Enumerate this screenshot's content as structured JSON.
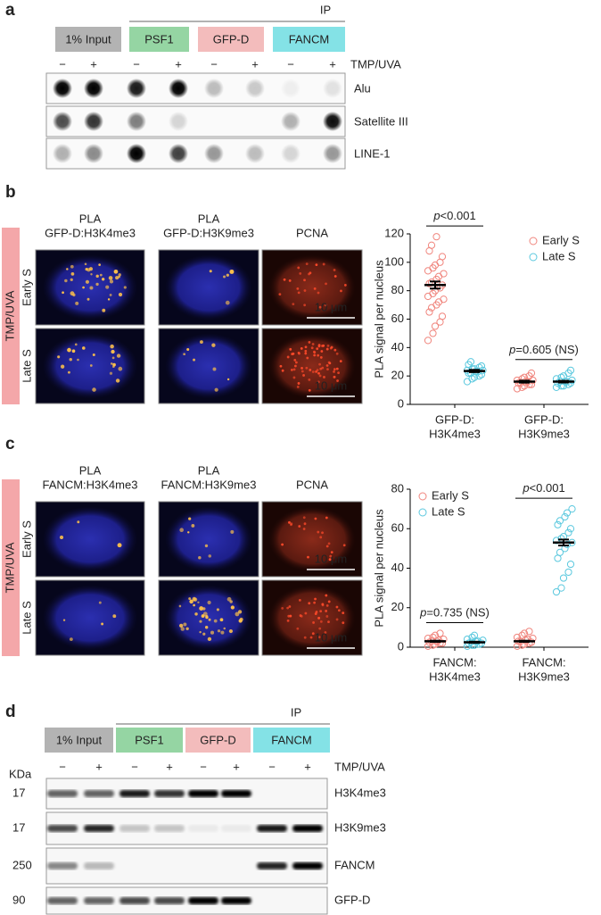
{
  "panels": {
    "a": {
      "label": "a",
      "ip": "IP",
      "groups": [
        "1% Input",
        "PSF1",
        "GFP-D",
        "FANCM"
      ],
      "treatment": "TMP/UVA",
      "signs": [
        "−",
        "+",
        "−",
        "+",
        "−",
        "+",
        "−",
        "+"
      ],
      "rows": [
        "Alu",
        "Satellite III",
        "LINE-1"
      ]
    },
    "b": {
      "label": "b",
      "side": "TMP/UVA",
      "rows": [
        "Early S",
        "Late S"
      ],
      "columns": [
        [
          "PLA",
          "GFP-D:H3K4me3"
        ],
        [
          "PLA",
          "GFP-D:H3K9me3"
        ],
        [
          "PCNA"
        ]
      ],
      "scale_bar": "10 μm"
    },
    "c": {
      "label": "c",
      "side": "TMP/UVA",
      "rows": [
        "Early S",
        "Late S"
      ],
      "columns": [
        [
          "PLA",
          "FANCM:H3K4me3"
        ],
        [
          "PLA",
          "FANCM:H3K9me3"
        ],
        [
          "PCNA"
        ]
      ],
      "scale_bar": "10 μm"
    },
    "d": {
      "label": "d",
      "ip": "IP",
      "groups": [
        "1% Input",
        "PSF1",
        "GFP-D",
        "FANCM"
      ],
      "treatment": "TMP/UVA",
      "signs": [
        "−",
        "+",
        "−",
        "+",
        "−",
        "+",
        "−",
        "+"
      ],
      "unit": "KDa",
      "rows": [
        {
          "mw": 17,
          "name": "H3K4me3"
        },
        {
          "mw": 17,
          "name": "H3K9me3"
        },
        {
          "mw": 250,
          "name": "FANCM"
        },
        {
          "mw": 90,
          "name": "GFP-D"
        }
      ]
    }
  },
  "chart_data": [
    {
      "type": "scatter",
      "ylabel": "PLA signal per nucleus",
      "ylim": [
        0,
        120
      ],
      "yticks": [
        0,
        20,
        40,
        60,
        80,
        100,
        120
      ],
      "categories": [
        [
          "GFP-D:",
          "H3K4me3"
        ],
        [
          "GFP-D:",
          "H3K9me3"
        ]
      ],
      "legend": "upper right",
      "series": [
        {
          "name": "Early S",
          "color": "#f0857d",
          "values": [
            [
              45,
              50,
              55,
              58,
              62,
              65,
              68,
              70,
              72,
              74,
              76,
              78,
              80,
              82,
              84,
              85,
              86,
              88,
              90,
              92,
              94,
              96,
              98,
              100,
              104,
              108,
              112,
              118
            ],
            [
              11,
              12,
              13,
              14,
              14,
              15,
              15,
              16,
              16,
              17,
              17,
              18,
              19,
              20,
              22
            ]
          ],
          "mean": [
            84,
            16
          ],
          "sem": [
            2.5,
            0.7
          ]
        },
        {
          "name": "Late S",
          "color": "#5ac8de",
          "values": [
            [
              16,
              18,
              19,
              20,
              21,
              22,
              22,
              23,
              23,
              24,
              24,
              25,
              25,
              26,
              27,
              28,
              30
            ],
            [
              12,
              13,
              13,
              14,
              15,
              15,
              16,
              16,
              16,
              17,
              18,
              19,
              20,
              22,
              24
            ]
          ],
          "mean": [
            23.5,
            16
          ],
          "sem": [
            0.8,
            0.6
          ]
        }
      ],
      "annotations": [
        {
          "category": 0,
          "text": [
            "p",
            "<0.001"
          ]
        },
        {
          "category": 1,
          "text": [
            "p",
            "=0.605 (NS)"
          ]
        }
      ]
    },
    {
      "type": "scatter",
      "ylabel": "PLA signal per nucleus",
      "ylim": [
        0,
        80
      ],
      "yticks": [
        0,
        20,
        40,
        60,
        80
      ],
      "categories": [
        [
          "FANCM:",
          "H3K4me3"
        ],
        [
          "FANCM:",
          "H3K9me3"
        ]
      ],
      "legend": "upper left",
      "series": [
        {
          "name": "Early S",
          "color": "#f0857d",
          "values": [
            [
              0.5,
              1,
              1.5,
              2,
              2,
              2.5,
              3,
              3,
              3.5,
              4,
              4.5,
              5,
              6,
              7
            ],
            [
              0.5,
              1,
              1.5,
              2,
              2.5,
              3,
              3,
              3.5,
              4,
              4.5,
              5,
              6,
              7,
              8
            ]
          ],
          "mean": [
            3,
            3
          ],
          "sem": [
            0.3,
            0.3
          ]
        },
        {
          "name": "Late S",
          "color": "#5ac8de",
          "values": [
            [
              0.5,
              1,
              1,
              1.5,
              2,
              2,
              2.5,
              3,
              3,
              3.5,
              4,
              5,
              6
            ],
            [
              28,
              30,
              35,
              38,
              42,
              45,
              48,
              50,
              52,
              53,
              54,
              55,
              56,
              58,
              60,
              62,
              64,
              66,
              68,
              70
            ]
          ],
          "mean": [
            2.5,
            53
          ],
          "sem": [
            0.3,
            1.5
          ]
        }
      ],
      "annotations": [
        {
          "category": 0,
          "text": [
            "p",
            "=0.735 (NS)"
          ]
        },
        {
          "category": 1,
          "text": [
            "p",
            "<0.001"
          ]
        }
      ]
    }
  ]
}
